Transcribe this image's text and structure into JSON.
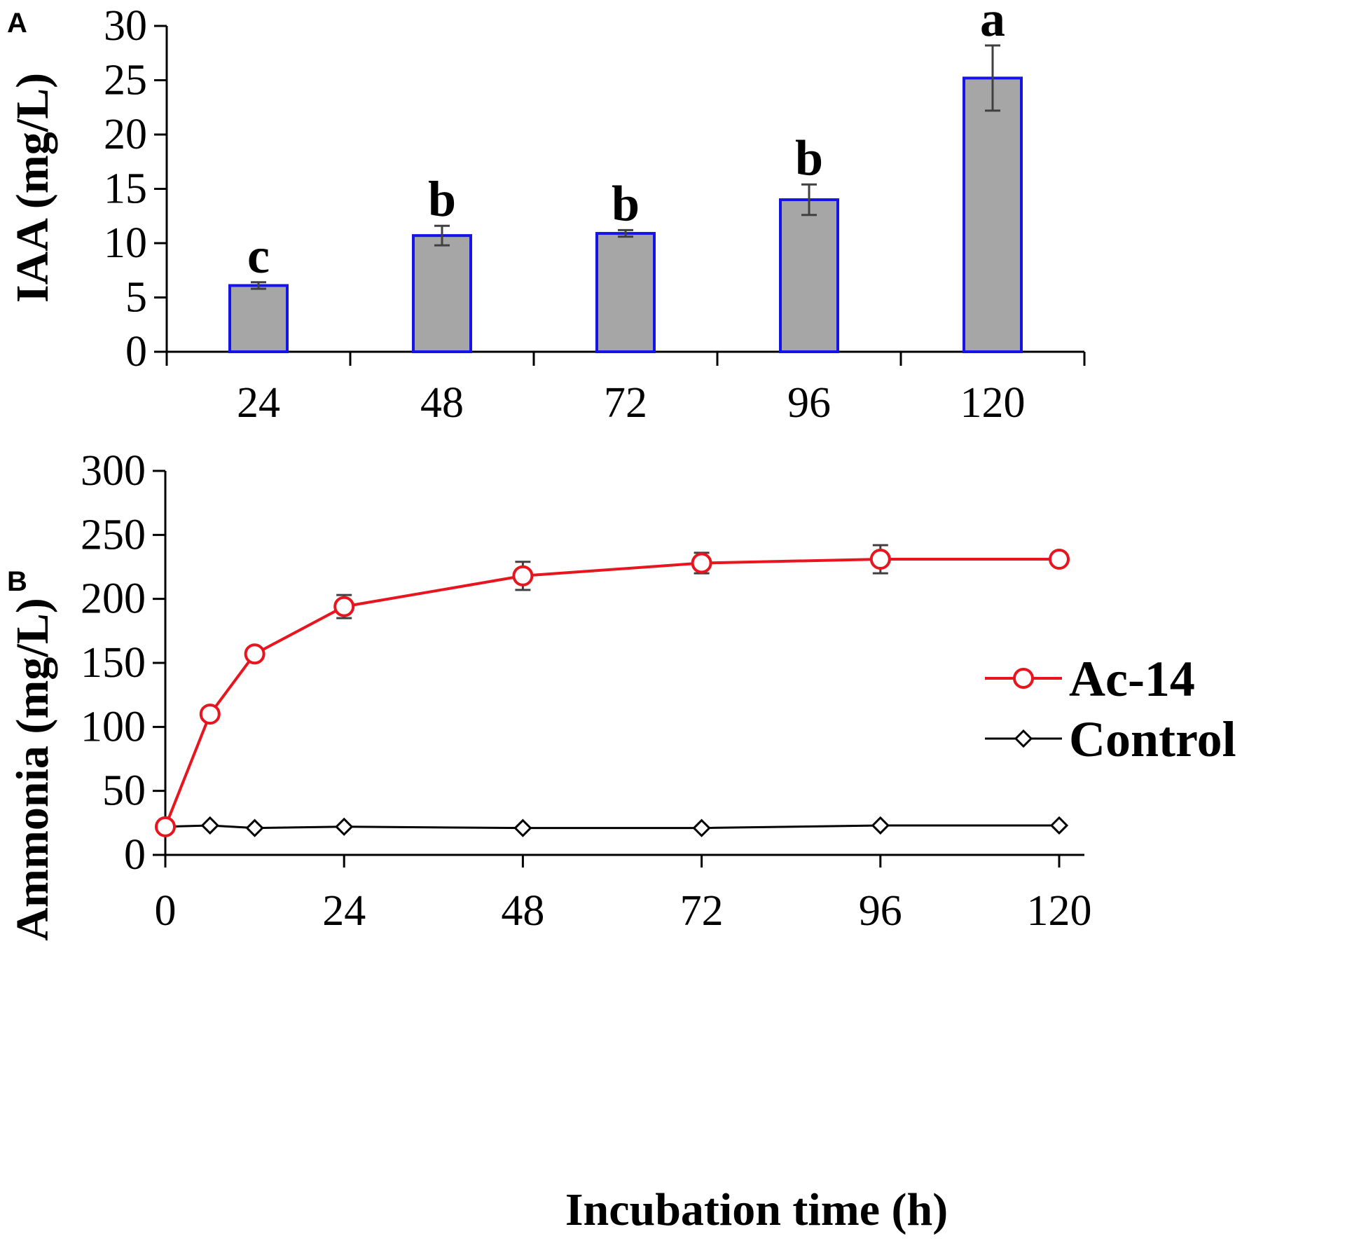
{
  "chart_data": [
    {
      "panel": "A",
      "type": "bar",
      "categories": [
        "24",
        "48",
        "72",
        "96",
        "120"
      ],
      "values": [
        6.1,
        10.7,
        10.9,
        14.0,
        25.2
      ],
      "errors": [
        0.3,
        0.9,
        0.3,
        1.4,
        3.0
      ],
      "significance": [
        "c",
        "b",
        "b",
        "b",
        "a"
      ],
      "ylabel": "IAA (mg/L)",
      "xlabel": "",
      "ylim": [
        0,
        30
      ],
      "yticks": [
        "0",
        "5",
        "10",
        "15",
        "20",
        "25",
        "30"
      ],
      "bar_fill": "#a6a6a6",
      "bar_edge": "#1414e6"
    },
    {
      "panel": "B",
      "type": "line",
      "x": [
        0,
        6,
        12,
        24,
        48,
        72,
        96,
        120
      ],
      "xticks": [
        "0",
        "24",
        "48",
        "72",
        "96",
        "120"
      ],
      "yticks": [
        "0",
        "50",
        "100",
        "150",
        "200",
        "250",
        "300"
      ],
      "xlim": [
        0,
        120
      ],
      "ylim": [
        0,
        300
      ],
      "xlabel": "Incubation time (h)",
      "ylabel": "Ammonia (mg/L)",
      "legend_position": "center-right",
      "series": [
        {
          "name": "Ac-14",
          "values": [
            22,
            110,
            157,
            194,
            218,
            228,
            231,
            231
          ],
          "errors": [
            0,
            0,
            0,
            9,
            11,
            8,
            11,
            0
          ],
          "color": "#e8141e",
          "marker": "circle"
        },
        {
          "name": "Control",
          "values": [
            22,
            23,
            21,
            22,
            21,
            21,
            23,
            23
          ],
          "errors": [
            0,
            0,
            0,
            0,
            0,
            0,
            0,
            0
          ],
          "color": "#000000",
          "marker": "diamond"
        }
      ]
    }
  ]
}
